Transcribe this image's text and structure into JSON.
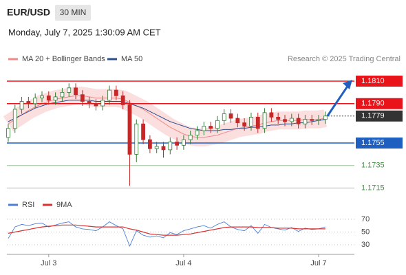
{
  "chart_data": [
    {
      "type": "candlestick",
      "title": "EUR/USD",
      "timeframe": "30 MIN",
      "subtitle": "Monday, July 7, 2025 1:30:09 AM CET",
      "attribution": "Research © 2025 Trading Central",
      "up_color": "#2e7d32",
      "down_color": "#c62828",
      "xlim": [
        -0.2,
        51.3
      ],
      "ylim": [
        1.1708,
        1.1821
      ],
      "open": [
        1.176,
        1.1768,
        1.1785,
        1.1792,
        1.179,
        1.1795,
        1.1797,
        1.1793,
        1.1796,
        1.18,
        1.1804,
        1.1798,
        1.1792,
        1.179,
        1.1788,
        1.1793,
        1.1802,
        1.1797,
        1.1789,
        1.1745,
        1.1772,
        1.1758,
        1.175,
        1.1752,
        1.1749,
        1.1756,
        1.1753,
        1.1758,
        1.1762,
        1.1766,
        1.177,
        1.1768,
        1.1775,
        1.1781,
        1.1777,
        1.1773,
        1.177,
        1.1778,
        1.1768,
        1.1782,
        1.1778,
        1.1776,
        1.1774,
        1.1777,
        1.1772,
        1.1776,
        1.1775,
        1.1776
      ],
      "high": [
        1.1772,
        1.1789,
        1.1796,
        1.1796,
        1.1799,
        1.1801,
        1.1801,
        1.18,
        1.1804,
        1.1808,
        1.1808,
        1.1802,
        1.1796,
        1.1794,
        1.1797,
        1.1806,
        1.1806,
        1.1801,
        1.1793,
        1.1776,
        1.1776,
        1.1762,
        1.1756,
        1.1756,
        1.176,
        1.176,
        1.1762,
        1.1766,
        1.177,
        1.1774,
        1.1774,
        1.1779,
        1.1785,
        1.1785,
        1.1781,
        1.1777,
        1.1782,
        1.1782,
        1.1786,
        1.1786,
        1.1782,
        1.178,
        1.1781,
        1.1781,
        1.178,
        1.178,
        1.178,
        1.1783
      ],
      "low": [
        1.1756,
        1.1764,
        1.1781,
        1.1786,
        1.1786,
        1.1791,
        1.1789,
        1.1789,
        1.1792,
        1.1796,
        1.1794,
        1.1788,
        1.1786,
        1.1784,
        1.1784,
        1.1789,
        1.1793,
        1.1785,
        1.1717,
        1.1738,
        1.1754,
        1.1746,
        1.1746,
        1.1742,
        1.1745,
        1.1749,
        1.1749,
        1.1754,
        1.1758,
        1.1762,
        1.1764,
        1.1764,
        1.1771,
        1.1773,
        1.1769,
        1.1766,
        1.1766,
        1.1764,
        1.1764,
        1.1774,
        1.1772,
        1.177,
        1.177,
        1.1768,
        1.1768,
        1.1771,
        1.1771,
        1.1772
      ],
      "close": [
        1.1768,
        1.1785,
        1.1792,
        1.179,
        1.1795,
        1.1797,
        1.1793,
        1.1796,
        1.18,
        1.1804,
        1.1798,
        1.1792,
        1.179,
        1.1788,
        1.1793,
        1.1802,
        1.1797,
        1.1789,
        1.1745,
        1.1772,
        1.1758,
        1.175,
        1.1752,
        1.1749,
        1.1756,
        1.1753,
        1.1758,
        1.1762,
        1.1766,
        1.177,
        1.1768,
        1.1775,
        1.1781,
        1.1777,
        1.1773,
        1.177,
        1.1778,
        1.1768,
        1.1782,
        1.1778,
        1.1776,
        1.1774,
        1.1777,
        1.1772,
        1.1776,
        1.1775,
        1.1776,
        1.1779
      ],
      "series": [
        {
          "name": "MA 20 + Bollinger Bands",
          "color": "#f08a8a",
          "band": true,
          "values": [
            1.1772,
            1.1776,
            1.178,
            1.1784,
            1.1787,
            1.179,
            1.1792,
            1.1794,
            1.1795,
            1.1796,
            1.1797,
            1.1797,
            1.1796,
            1.1795,
            1.1795,
            1.1795,
            1.1795,
            1.1794,
            1.1791,
            1.1788,
            1.1785,
            1.1781,
            1.1777,
            1.1773,
            1.1769,
            1.1766,
            1.1763,
            1.1761,
            1.176,
            1.176,
            1.1761,
            1.1762,
            1.1764,
            1.1766,
            1.1768,
            1.1769,
            1.177,
            1.1771,
            1.1773,
            1.1774,
            1.1775,
            1.1775,
            1.1775,
            1.1775,
            1.1776,
            1.1776,
            1.1776,
            1.1777
          ]
        },
        {
          "name": "MA 50",
          "color": "#2b4f8c",
          "values": [
            1.1774,
            1.1777,
            1.178,
            1.1783,
            1.1786,
            1.1788,
            1.179,
            1.1791,
            1.1792,
            1.1793,
            1.1793,
            1.1793,
            1.1793,
            1.1792,
            1.1792,
            1.1792,
            1.1792,
            1.1792,
            1.179,
            1.1788,
            1.1786,
            1.1783,
            1.178,
            1.1777,
            1.1774,
            1.1772,
            1.177,
            1.1768,
            1.1767,
            1.1766,
            1.1766,
            1.1766,
            1.1767,
            1.1767,
            1.1768,
            1.1768,
            1.1769,
            1.1769,
            1.177,
            1.1771,
            1.1771,
            1.1772,
            1.1772,
            1.1773,
            1.1773,
            1.1774,
            1.1775,
            1.1776
          ]
        }
      ],
      "levels": [
        {
          "value": 1.181,
          "label": "1.1810",
          "color": "#e8141a",
          "box": true
        },
        {
          "value": 1.179,
          "label": "1.1790",
          "color": "#e8141a",
          "box": true
        },
        {
          "value": 1.1779,
          "label": "1.1779",
          "color": "#333333",
          "box": true,
          "dotted": true
        },
        {
          "value": 1.1755,
          "label": "1.1755",
          "color": "#1f5fbf",
          "box": true
        },
        {
          "value": 1.1735,
          "label": "1.1735",
          "color": "#3f8f3f",
          "box": false
        },
        {
          "value": 1.1715,
          "label": "1.1715",
          "color": "#3f8f3f",
          "box": false
        }
      ]
    },
    {
      "type": "line",
      "xlim": [
        -0.2,
        51.3
      ],
      "ylim": [
        15,
        85
      ],
      "yticks": [
        30,
        50,
        70
      ],
      "xticks": [
        {
          "value": 6,
          "label": "Jul 3"
        },
        {
          "value": 26,
          "label": "Jul 4"
        },
        {
          "value": 46,
          "label": "Jul 7"
        }
      ],
      "series": [
        {
          "name": "RSI",
          "color": "#4a7fd4",
          "values": [
            40,
            58,
            62,
            60,
            63,
            64,
            58,
            61,
            64,
            66,
            58,
            55,
            54,
            52,
            58,
            66,
            60,
            55,
            28,
            52,
            45,
            42,
            44,
            41,
            49,
            46,
            52,
            55,
            58,
            60,
            56,
            62,
            66,
            58,
            54,
            52,
            60,
            48,
            62,
            57,
            55,
            53,
            57,
            51,
            56,
            54,
            55,
            58
          ]
        },
        {
          "name": "9MA",
          "color": "#d93030",
          "values": [
            48,
            50,
            52,
            54,
            56,
            58,
            59,
            60,
            61,
            61,
            61,
            60,
            59,
            58,
            58,
            58,
            58,
            58,
            55,
            53,
            50,
            47,
            46,
            45,
            45,
            45,
            46,
            47,
            49,
            51,
            53,
            55,
            57,
            58,
            58,
            58,
            58,
            57,
            57,
            57,
            56,
            56,
            56,
            55,
            55,
            55,
            55,
            55
          ]
        }
      ]
    }
  ]
}
